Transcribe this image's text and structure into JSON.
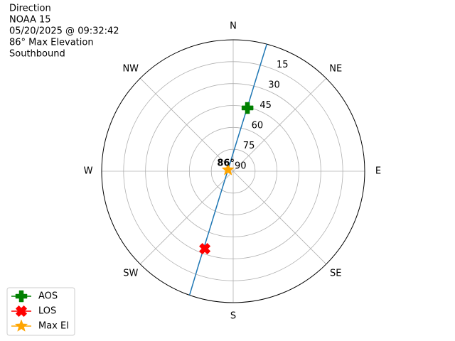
{
  "chart_data": {
    "type": "polar",
    "title_lines": [
      "Direction",
      "NOAA 15",
      "05/20/2025 @ 09:32:42",
      "86° Max Elevation",
      "Southbound"
    ],
    "thetaticks": [
      {
        "value": 0,
        "label": "N"
      },
      {
        "value": 45,
        "label": "NE"
      },
      {
        "value": 90,
        "label": "E"
      },
      {
        "value": 135,
        "label": "SE"
      },
      {
        "value": 180,
        "label": "S"
      },
      {
        "value": 225,
        "label": "SW"
      },
      {
        "value": 270,
        "label": "W"
      },
      {
        "value": 315,
        "label": "NW"
      }
    ],
    "rlim": [
      90,
      0
    ],
    "rticks": [
      15,
      30,
      45,
      60,
      75,
      90
    ],
    "grid": true,
    "legend": "lower left",
    "track": {
      "color": "#1f77b4",
      "azimuth": [
        14.8,
        14.0,
        12.5,
        7.8,
        285.3,
        206.5,
        201.8,
        200.3,
        199.4
      ],
      "elevation": [
        0,
        22.8,
        45.1,
        67.4,
        86.3,
        67.2,
        44.9,
        22.6,
        0
      ]
    },
    "series": [
      {
        "name": "AOS",
        "color": "#008000",
        "marker": "plus",
        "azimuth": [
          12.7
        ],
        "elevation": [
          45.6
        ]
      },
      {
        "name": "LOS",
        "color": "#ff0000",
        "marker": "x",
        "azimuth": [
          200.1
        ],
        "elevation": [
          33.5
        ]
      },
      {
        "name": "Max El",
        "color": "#ffa500",
        "marker": "star",
        "azimuth": [
          285.3
        ],
        "elevation": [
          86.3
        ]
      }
    ],
    "annotations": [
      {
        "text": "86°",
        "azimuth": 285.3,
        "elevation": 86.3
      }
    ]
  }
}
